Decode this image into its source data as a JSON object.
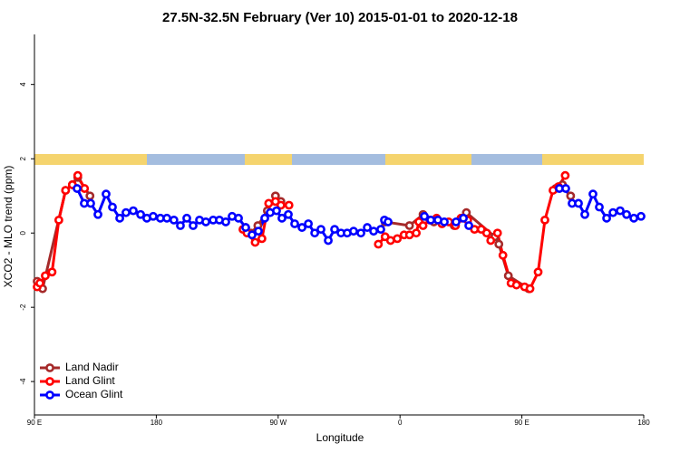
{
  "chart_data": {
    "type": "line",
    "title": "27.5N-32.5N February (Ver 10)   2015-01-01 to 2020-12-18",
    "x_label": "Longitude",
    "y_label": "XCO2 - MLO trend (ppm)",
    "xlim": [
      90,
      540
    ],
    "ylim": [
      -4.9,
      5.35
    ],
    "xticks": [
      {
        "value": 90,
        "label": "90 E"
      },
      {
        "value": 180,
        "label": "180"
      },
      {
        "value": 270,
        "label": "90 W"
      },
      {
        "value": 360,
        "label": "0"
      },
      {
        "value": 450,
        "label": "90 E"
      },
      {
        "value": 540,
        "label": "180"
      }
    ],
    "yticks": [
      -4,
      -2,
      0,
      2,
      4
    ],
    "legend": "bottom-left",
    "series": [
      {
        "name": "Land Nadir",
        "color": "#a52a2a",
        "x": [
          92,
          96,
          113,
          118,
          122,
          131,
          190,
          246,
          250,
          255,
          262,
          268,
          272,
          310,
          349,
          367,
          377,
          385,
          400,
          409,
          430,
          433,
          440,
          455,
          465,
          475,
          480,
          486
        ],
        "values": [
          -1.3,
          -1.5,
          1.15,
          1.3,
          1.5,
          1.0,
          null,
          0.15,
          0.0,
          0.2,
          0.6,
          1.0,
          0.85,
          null,
          0.3,
          0.2,
          0.5,
          0.3,
          0.2,
          0.55,
          -0.1,
          -0.3,
          -1.15,
          -1.5,
          null,
          1.2,
          1.3,
          1.0
        ]
      },
      {
        "name": "Land Glint",
        "color": "#ff0000",
        "x": [
          92,
          94,
          98,
          103,
          108,
          113,
          118,
          122,
          127,
          190,
          244,
          247,
          253,
          258,
          263,
          268,
          272,
          278,
          310,
          344,
          349,
          353,
          358,
          363,
          367,
          372,
          374,
          377,
          382,
          387,
          391,
          396,
          401,
          405,
          410,
          415,
          420,
          424,
          427,
          432,
          436,
          442,
          446,
          452,
          456,
          462,
          467,
          473,
          477,
          482
        ],
        "values": [
          -1.45,
          -1.35,
          -1.15,
          -1.05,
          0.35,
          1.15,
          1.3,
          1.55,
          1.2,
          null,
          0.1,
          0.0,
          -0.25,
          -0.15,
          0.8,
          0.85,
          0.75,
          0.75,
          null,
          -0.3,
          -0.1,
          -0.2,
          -0.15,
          -0.05,
          -0.05,
          0.0,
          0.3,
          0.2,
          0.35,
          0.4,
          0.25,
          0.3,
          0.2,
          0.4,
          0.35,
          0.1,
          0.1,
          0.0,
          -0.2,
          0.0,
          -0.6,
          -1.35,
          -1.4,
          -1.45,
          -1.5,
          -1.05,
          0.35,
          1.15,
          1.25,
          1.55
        ]
      },
      {
        "name": "Ocean Glint",
        "color": "#0000ff",
        "x": [
          121.5,
          126.8,
          131.5,
          136.9,
          142.9,
          147.6,
          153,
          157.6,
          163,
          168.4,
          173,
          177.7,
          183,
          187.8,
          193,
          197.8,
          202.5,
          207.2,
          211.9,
          216.6,
          222,
          226.6,
          231.3,
          236,
          240.7,
          246,
          250.7,
          255.4,
          260.1,
          264.1,
          268.8,
          272.8,
          277.5,
          282.2,
          287.6,
          292.3,
          297,
          301.6,
          307,
          311.7,
          316.4,
          321,
          325.7,
          331.1,
          335.8,
          340.5,
          345.8,
          348.5,
          351.2,
          365,
          378,
          382.7,
          388,
          392.7,
          401.4,
          406.8,
          410.8,
          440,
          477.7,
          482.4,
          487.1,
          491.8,
          496.5,
          502.5,
          507.2,
          512.6,
          517.3,
          522.6,
          527.3,
          532.7,
          538
        ],
        "values": [
          1.2,
          0.8,
          0.8,
          0.5,
          1.05,
          0.7,
          0.4,
          0.55,
          0.6,
          0.5,
          0.4,
          0.45,
          0.4,
          0.4,
          0.35,
          0.2,
          0.4,
          0.2,
          0.35,
          0.3,
          0.35,
          0.35,
          0.3,
          0.45,
          0.4,
          0.15,
          -0.05,
          0.05,
          0.4,
          0.55,
          0.6,
          0.4,
          0.5,
          0.25,
          0.15,
          0.25,
          0.0,
          0.1,
          -0.2,
          0.1,
          0.0,
          0.0,
          0.05,
          0.0,
          0.15,
          0.05,
          0.1,
          0.35,
          0.3,
          null,
          0.45,
          0.35,
          0.35,
          0.3,
          0.3,
          0.4,
          0.2,
          null,
          1.2,
          1.2,
          0.8,
          0.8,
          0.5,
          1.05,
          0.7,
          0.4,
          0.55,
          0.6,
          0.5,
          0.4,
          0.45
        ]
      }
    ]
  }
}
